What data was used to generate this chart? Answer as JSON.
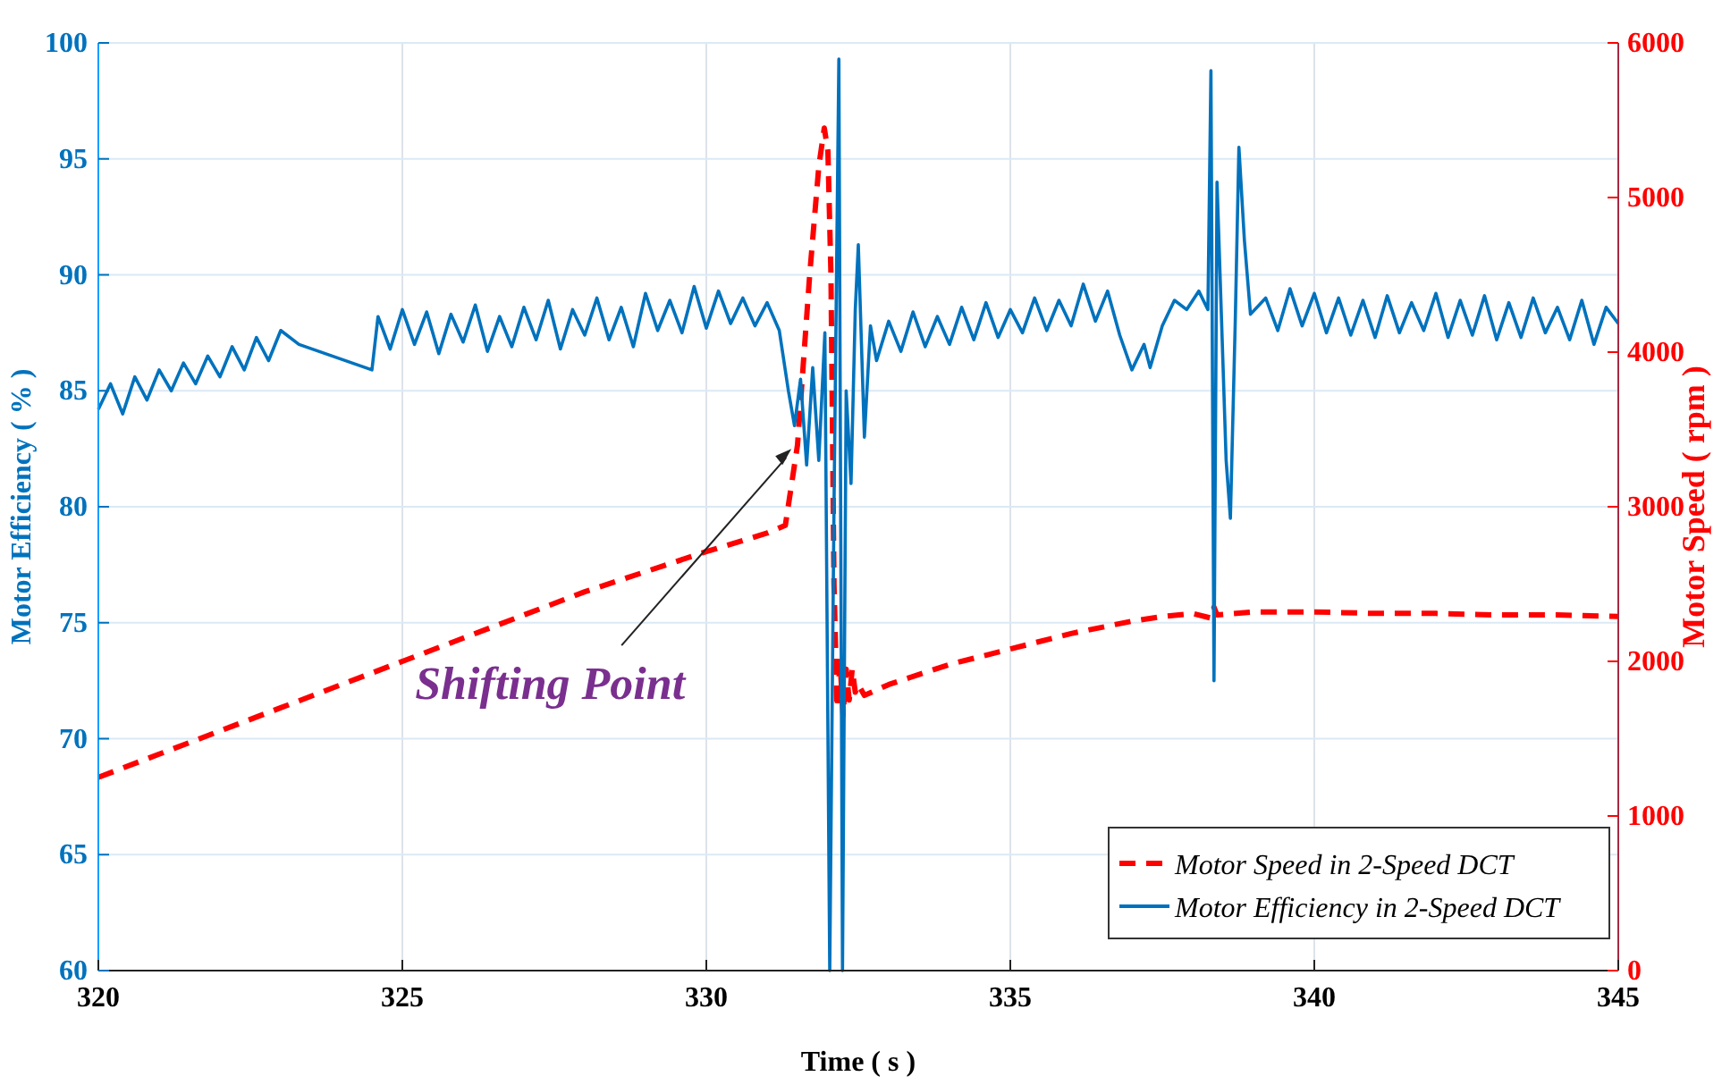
{
  "chart_data": {
    "type": "line",
    "xlabel": "Time ( s )",
    "ylabel": "Motor Efficiency ( % )",
    "y2label": "Motor Speed ( rpm )",
    "xlim": [
      320,
      345
    ],
    "xticks": [
      320,
      325,
      330,
      335,
      340,
      345
    ],
    "ylim": [
      60,
      100
    ],
    "yticks": [
      60,
      65,
      70,
      75,
      80,
      85,
      90,
      95,
      100
    ],
    "y2lim": [
      0,
      6000
    ],
    "y2ticks": [
      0,
      1000,
      2000,
      3000,
      4000,
      5000,
      6000
    ],
    "grid": true,
    "legend": "bottom right",
    "annotations": [
      {
        "text": "Shifting Point",
        "x": 331.4,
        "y": 82.5
      }
    ],
    "series": [
      {
        "name": "Motor Speed in 2-Speed DCT",
        "color": "#ff0000",
        "axis": "y2",
        "line_style": "dashed",
        "x": [
          320,
          321,
          322,
          323,
          324,
          325,
          326,
          327,
          328,
          329,
          330,
          331,
          331.3,
          331.5,
          331.7,
          331.85,
          331.94,
          332.0,
          332.05,
          332.1,
          332.15,
          332.2,
          332.25,
          332.3,
          332.35,
          332.4,
          332.45,
          332.5,
          332.6,
          333,
          334,
          335,
          336,
          337,
          337.5,
          338,
          338.3,
          338.35,
          338.4,
          339,
          340,
          341,
          342,
          343,
          344,
          345
        ],
        "values": [
          1250,
          1400,
          1550,
          1700,
          1850,
          2000,
          2150,
          2300,
          2450,
          2580,
          2710,
          2830,
          2880,
          3400,
          4500,
          5200,
          5450,
          5300,
          4500,
          2500,
          1700,
          2000,
          1650,
          1950,
          1750,
          1950,
          1800,
          1850,
          1780,
          1850,
          1980,
          2080,
          2180,
          2260,
          2290,
          2310,
          2280,
          2350,
          2300,
          2320,
          2320,
          2310,
          2310,
          2300,
          2300,
          2290
        ]
      },
      {
        "name": "Motor Efficiency in 2-Speed DCT",
        "color": "#0072bd",
        "line_style": "solid",
        "x": [
          320,
          320.2,
          320.4,
          320.6,
          320.8,
          321,
          321.2,
          321.4,
          321.6,
          321.8,
          322,
          322.2,
          322.4,
          322.6,
          322.8,
          323,
          323.3,
          324.5,
          324.6,
          324.8,
          325,
          325.2,
          325.4,
          325.6,
          325.8,
          326,
          326.2,
          326.4,
          326.6,
          326.8,
          327,
          327.2,
          327.4,
          327.6,
          327.8,
          328,
          328.2,
          328.4,
          328.6,
          328.8,
          329,
          329.2,
          329.4,
          329.6,
          329.8,
          330,
          330.2,
          330.4,
          330.6,
          330.8,
          331,
          331.2,
          331.35,
          331.45,
          331.55,
          331.65,
          331.75,
          331.85,
          331.95,
          332.03,
          332.1,
          332.18,
          332.24,
          332.3,
          332.38,
          332.45,
          332.5,
          332.6,
          332.7,
          332.8,
          333,
          333.2,
          333.4,
          333.6,
          333.8,
          334,
          334.2,
          334.4,
          334.6,
          334.8,
          335,
          335.2,
          335.4,
          335.6,
          335.8,
          336,
          336.2,
          336.4,
          336.6,
          336.8,
          337,
          337.2,
          337.3,
          337.5,
          337.7,
          337.9,
          338.1,
          338.25,
          338.3,
          338.35,
          338.4,
          338.55,
          338.62,
          338.7,
          338.76,
          338.85,
          338.95,
          339.2,
          339.4,
          339.6,
          339.8,
          340,
          340.2,
          340.4,
          340.6,
          340.8,
          341,
          341.2,
          341.4,
          341.6,
          341.8,
          342,
          342.2,
          342.4,
          342.6,
          342.8,
          343,
          343.2,
          343.4,
          343.6,
          343.8,
          344,
          344.2,
          344.4,
          344.6,
          344.8,
          345
        ],
        "values": [
          84.2,
          85.3,
          84.0,
          85.6,
          84.6,
          85.9,
          85.0,
          86.2,
          85.3,
          86.5,
          85.6,
          86.9,
          85.9,
          87.3,
          86.3,
          87.6,
          87.0,
          85.9,
          88.2,
          86.8,
          88.5,
          87.0,
          88.4,
          86.6,
          88.3,
          87.1,
          88.7,
          86.7,
          88.2,
          86.9,
          88.6,
          87.2,
          88.9,
          86.8,
          88.5,
          87.4,
          89.0,
          87.2,
          88.6,
          86.9,
          89.2,
          87.6,
          88.9,
          87.5,
          89.5,
          87.7,
          89.3,
          87.9,
          89.0,
          87.8,
          88.8,
          87.6,
          85.0,
          83.5,
          85.5,
          81.8,
          86.0,
          82.0,
          87.5,
          60,
          80,
          99.3,
          60,
          85,
          81.0,
          88.5,
          91.3,
          83.0,
          87.8,
          86.3,
          88.0,
          86.7,
          88.4,
          86.9,
          88.2,
          87.0,
          88.6,
          87.2,
          88.8,
          87.3,
          88.5,
          87.5,
          89.0,
          87.6,
          88.9,
          87.8,
          89.6,
          88.0,
          89.3,
          87.4,
          85.9,
          87.0,
          86.0,
          87.8,
          88.9,
          88.5,
          89.3,
          88.5,
          98.8,
          72.5,
          94.0,
          82.0,
          79.5,
          88,
          95.5,
          91.5,
          88.3,
          89.0,
          87.6,
          89.4,
          87.8,
          89.2,
          87.5,
          89.0,
          87.4,
          88.9,
          87.3,
          89.1,
          87.5,
          88.8,
          87.6,
          89.2,
          87.3,
          88.9,
          87.4,
          89.1,
          87.2,
          88.8,
          87.3,
          89.0,
          87.5,
          88.6,
          87.2,
          88.9,
          87.0,
          88.6,
          87.9
        ]
      }
    ]
  }
}
